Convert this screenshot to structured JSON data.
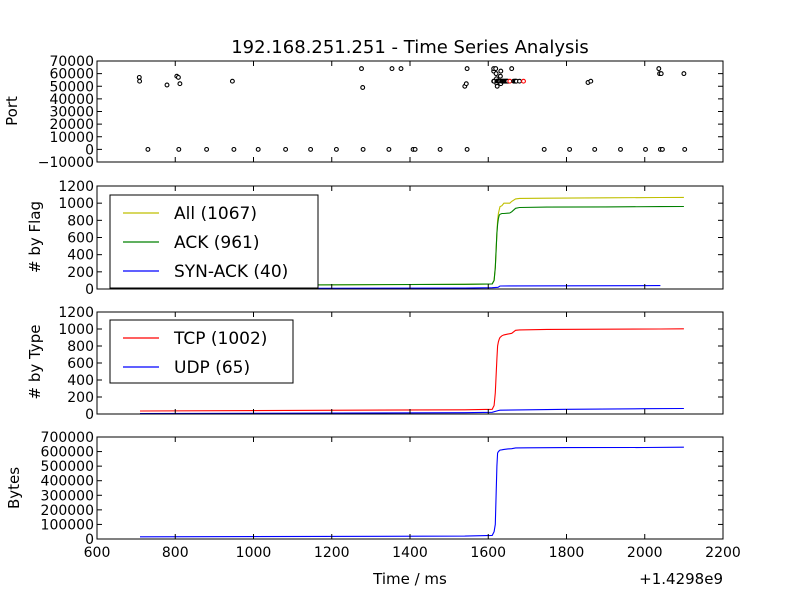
{
  "chart_data": [
    {
      "type": "scatter",
      "title": "192.168.251.251 - Time Series Analysis",
      "ylabel": "Port",
      "xlim": [
        600,
        2200
      ],
      "ylim": [
        -10000,
        70000
      ],
      "yticks": [
        -10000,
        0,
        10000,
        20000,
        30000,
        40000,
        50000,
        60000,
        70000
      ],
      "ytick_labels": [
        "−10000",
        "0",
        "10000",
        "20000",
        "30000",
        "40000",
        "50000",
        "60000",
        "70000"
      ],
      "marker_color": "#000000",
      "x": [
        708,
        709,
        730,
        779,
        804,
        808,
        809,
        812,
        880,
        946,
        950,
        1012,
        1082,
        1146,
        1212,
        1276,
        1279,
        1280,
        1346,
        1354,
        1377,
        1408,
        1413,
        1477,
        1540,
        1544,
        1546,
        1546,
        1614,
        1614,
        1614,
        1615,
        1619,
        1620,
        1621,
        1622,
        1622,
        1623,
        1624,
        1625,
        1626,
        1627,
        1628,
        1629,
        1630,
        1631,
        1632,
        1632,
        1634,
        1636,
        1638,
        1640,
        1642,
        1644,
        1646,
        1648,
        1650,
        1655,
        1660,
        1665,
        1668,
        1670,
        1672,
        1680,
        1690,
        1743,
        1808,
        1855,
        1862,
        1872,
        1938,
        2002,
        2036,
        2038,
        2040,
        2042,
        2045,
        2100,
        2102
      ],
      "y": [
        57000,
        54000,
        0,
        51000,
        58000,
        57000,
        0,
        52000,
        0,
        54000,
        0,
        0,
        0,
        0,
        0,
        64000,
        49000,
        0,
        0,
        64000,
        64000,
        0,
        0,
        0,
        50000,
        52000,
        64000,
        0,
        62000,
        64000,
        54000,
        54000,
        64000,
        60000,
        56000,
        54000,
        52000,
        50000,
        54000,
        54000,
        54000,
        54000,
        54000,
        54000,
        54000,
        58000,
        62000,
        52000,
        54000,
        54000,
        54000,
        54000,
        54000,
        54000,
        54000,
        54000,
        54000,
        54000,
        64000,
        54000,
        54000,
        54000,
        54000,
        54000,
        54000,
        0,
        0,
        53000,
        54000,
        0,
        0,
        0,
        64000,
        60000,
        0,
        60000,
        0,
        60000,
        0
      ],
      "point_colors": [
        "#000000",
        "#000000",
        "#000000",
        "#000000",
        "#000000",
        "#000000",
        "#000000",
        "#000000",
        "#000000",
        "#000000",
        "#000000",
        "#000000",
        "#000000",
        "#000000",
        "#000000",
        "#000000",
        "#000000",
        "#000000",
        "#000000",
        "#000000",
        "#000000",
        "#000000",
        "#000000",
        "#000000",
        "#000000",
        "#000000",
        "#000000",
        "#000000",
        "#000000",
        "#000000",
        "#000000",
        "#000000",
        "#000000",
        "#000000",
        "#000000",
        "#000000",
        "#000000",
        "#000000",
        "#000000",
        "#000000",
        "#000000",
        "#000000",
        "#000000",
        "#000000",
        "#000000",
        "#000000",
        "#000000",
        "#000000",
        "#000000",
        "#000000",
        "#000000",
        "#000000",
        "#000000",
        "#000000",
        "#000000",
        "#000000",
        "#000000",
        "#ff0000",
        "#000000",
        "#000000",
        "#000000",
        "#000000",
        "#000000",
        "#000000",
        "#ff0000",
        "#000000",
        "#000000",
        "#000000",
        "#000000",
        "#000000",
        "#000000",
        "#000000",
        "#000000",
        "#000000",
        "#000000",
        "#000000",
        "#000000",
        "#000000",
        "#000000"
      ]
    },
    {
      "type": "line",
      "ylabel": "# by Flag",
      "xlim": [
        600,
        2200
      ],
      "ylim": [
        0,
        1200
      ],
      "yticks": [
        0,
        200,
        400,
        600,
        800,
        1000,
        1200
      ],
      "ytick_labels": [
        "0",
        "200",
        "400",
        "600",
        "800",
        "1000",
        "1200"
      ],
      "legend_position": "upper-left",
      "series": [
        {
          "name": "All (1067)",
          "color": "#bfbf00",
          "x": [
            710,
            1540,
            1610,
            1615,
            1618,
            1620,
            1622,
            1624,
            1626,
            1628,
            1630,
            1635,
            1640,
            1655,
            1660,
            1670,
            1680,
            1750,
            1900,
            2040,
            2100
          ],
          "y": [
            40,
            55,
            60,
            100,
            250,
            450,
            650,
            800,
            880,
            920,
            960,
            970,
            1000,
            1000,
            1020,
            1050,
            1055,
            1058,
            1062,
            1066,
            1067
          ]
        },
        {
          "name": "ACK (961)",
          "color": "#008000",
          "x": [
            710,
            1540,
            1610,
            1615,
            1618,
            1620,
            1622,
            1624,
            1626,
            1628,
            1630,
            1635,
            1640,
            1655,
            1660,
            1670,
            1680,
            1750,
            1900,
            2040,
            2100
          ],
          "y": [
            40,
            55,
            60,
            100,
            250,
            450,
            650,
            750,
            820,
            860,
            870,
            880,
            880,
            885,
            900,
            940,
            950,
            954,
            957,
            960,
            961
          ]
        },
        {
          "name": "SYN-ACK (40)",
          "color": "#0000ff",
          "x": [
            710,
            1540,
            1610,
            1625,
            1630,
            2040
          ],
          "y": [
            5,
            10,
            15,
            20,
            35,
            40
          ]
        }
      ]
    },
    {
      "type": "line",
      "ylabel": "# by Type",
      "xlim": [
        600,
        2200
      ],
      "ylim": [
        0,
        1200
      ],
      "yticks": [
        0,
        200,
        400,
        600,
        800,
        1000,
        1200
      ],
      "ytick_labels": [
        "0",
        "200",
        "400",
        "600",
        "800",
        "1000",
        "1200"
      ],
      "legend_position": "upper-left",
      "series": [
        {
          "name": "TCP (1002)",
          "color": "#ff0000",
          "x": [
            710,
            1540,
            1610,
            1615,
            1618,
            1620,
            1622,
            1624,
            1626,
            1628,
            1630,
            1635,
            1640,
            1650,
            1660,
            1670,
            1680,
            1750,
            1900,
            2040,
            2100
          ],
          "y": [
            35,
            50,
            55,
            100,
            250,
            450,
            650,
            800,
            850,
            880,
            900,
            920,
            930,
            940,
            950,
            985,
            990,
            995,
            998,
            1000,
            1002
          ]
        },
        {
          "name": "UDP (65)",
          "color": "#0000ff",
          "x": [
            710,
            1540,
            1610,
            1625,
            1630,
            1800,
            2000,
            2100
          ],
          "y": [
            5,
            15,
            20,
            40,
            45,
            55,
            62,
            65
          ]
        }
      ]
    },
    {
      "type": "line",
      "ylabel": "Bytes",
      "xlabel": "Time / ms",
      "offset_text": "+1.4298e9",
      "xlim": [
        600,
        2200
      ],
      "ylim": [
        0,
        700000
      ],
      "xticks": [
        600,
        800,
        1000,
        1200,
        1400,
        1600,
        1800,
        2000,
        2200
      ],
      "xtick_labels": [
        "600",
        "800",
        "1000",
        "1200",
        "1400",
        "1600",
        "1800",
        "2000",
        "2200"
      ],
      "yticks": [
        0,
        100000,
        200000,
        300000,
        400000,
        500000,
        600000,
        700000
      ],
      "ytick_labels": [
        "0",
        "100000",
        "200000",
        "300000",
        "400000",
        "500000",
        "600000",
        "700000"
      ],
      "series": [
        {
          "color": "#0000ff",
          "x": [
            710,
            1540,
            1610,
            1615,
            1618,
            1620,
            1622,
            1624,
            1626,
            1628,
            1630,
            1635,
            1640,
            1650,
            1660,
            1670,
            1700,
            1800,
            2000,
            2100
          ],
          "y": [
            15000,
            20000,
            25000,
            50000,
            100000,
            300000,
            500000,
            590000,
            600000,
            605000,
            610000,
            612000,
            615000,
            618000,
            620000,
            625000,
            626000,
            627000,
            628000,
            630000
          ]
        }
      ]
    }
  ]
}
